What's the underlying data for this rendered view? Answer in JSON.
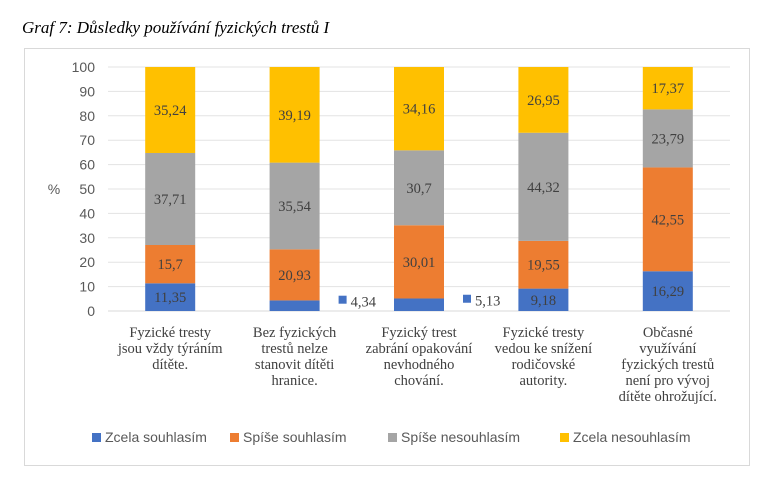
{
  "caption": "Graf 7: Důsledky používání fyzických trestů I",
  "chart_data": {
    "type": "bar",
    "stacked": true,
    "title": "",
    "ylabel": "%",
    "ylim": [
      0,
      100
    ],
    "yticks": [
      0,
      10,
      20,
      30,
      40,
      50,
      60,
      70,
      80,
      90,
      100
    ],
    "grid": true,
    "legend_position": "bottom",
    "categories": [
      [
        "Fyzické tresty",
        "jsou vždy týráním",
        "dítěte."
      ],
      [
        "Bez fyzických",
        "trestů nelze",
        "stanovit dítěti",
        "hranice."
      ],
      [
        "Fyzický trest",
        "zabrání opakování",
        "nevhodného",
        "chování."
      ],
      [
        "Fyzické tresty",
        "vedou ke snížení",
        "rodičovské",
        "autority."
      ],
      [
        "Občasné",
        "využívání",
        "fyzických trestů",
        "není pro vývoj",
        "dítěte ohrožující."
      ]
    ],
    "series": [
      {
        "name": "Zcela souhlasím",
        "color": "#4472c4",
        "values": [
          11.35,
          4.34,
          5.13,
          9.18,
          16.29
        ],
        "labels": [
          "11,35",
          "4,34",
          "5,13",
          "9,18",
          "16,29"
        ]
      },
      {
        "name": "Spíše souhlasím",
        "color": "#ed7d31",
        "values": [
          15.7,
          20.93,
          30.01,
          19.55,
          42.55
        ],
        "labels": [
          "15,7",
          "20,93",
          "30,01",
          "19,55",
          "42,55"
        ]
      },
      {
        "name": "Spíše nesouhlasím",
        "color": "#a5a5a5",
        "values": [
          37.71,
          35.54,
          30.7,
          44.32,
          23.79
        ],
        "labels": [
          "37,71",
          "35,54",
          "30,7",
          "44,32",
          "23,79"
        ]
      },
      {
        "name": "Zcela nesouhlasím",
        "color": "#ffc000",
        "values": [
          35.24,
          39.19,
          34.16,
          26.95,
          17.37
        ],
        "labels": [
          "35,24",
          "39,19",
          "34,16",
          "26,95",
          "17,37"
        ]
      }
    ]
  }
}
